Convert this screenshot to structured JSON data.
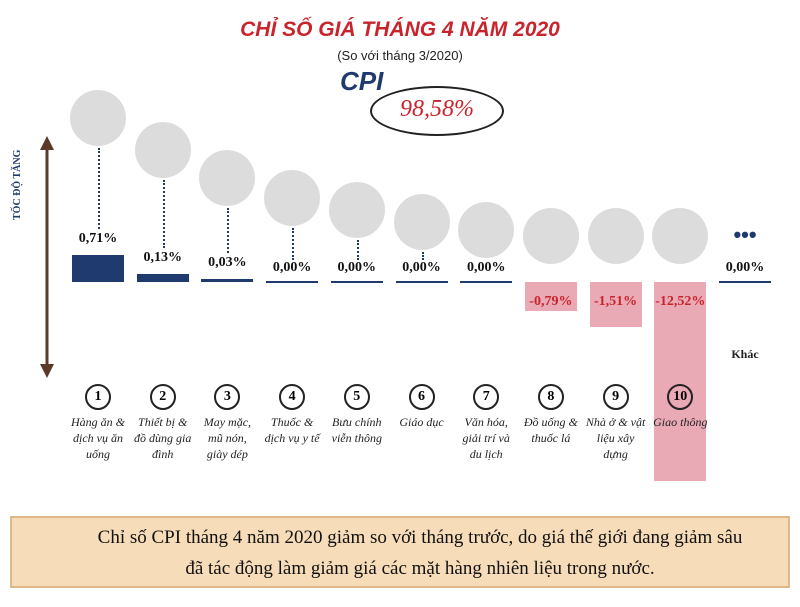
{
  "chart_data": {
    "type": "bar",
    "title": "CHỈ SỐ GIÁ THÁNG 4 NĂM 2020",
    "subtitle": "(So với tháng 3/2020)",
    "cpi_label": "CPI",
    "cpi_value": 98.58,
    "cpi_value_label": "98,58%",
    "axis_label": "TỐC ĐỘ TĂNG",
    "categories": [
      "Hàng ăn & dịch vụ ăn uống",
      "Thiết bị & đồ dùng gia đình",
      "May mặc, mũ nón, giày dép",
      "Thuốc & dịch vụ y tế",
      "Bưu chính viễn thông",
      "Giáo dục",
      "Văn hóa, giải trí và du lịch",
      "Đồ uống & thuốc lá",
      "Nhà ở & vật liệu xây dựng",
      "Giao thông",
      "Khác"
    ],
    "numbers": [
      1,
      2,
      3,
      4,
      5,
      6,
      7,
      8,
      9,
      10,
      null
    ],
    "values": [
      0.71,
      0.13,
      0.03,
      0,
      0,
      0,
      0,
      -0.79,
      -1.51,
      -12.52,
      0
    ],
    "value_labels": [
      "0,71%",
      "0,13%",
      "0,03%",
      "0,00%",
      "0,00%",
      "0,00%",
      "0,00%",
      "-0,79%",
      "-1,51%",
      "-12,52%",
      "0,00%"
    ],
    "positive_color": "#1f3a6e",
    "negative_color": "#e9a9b5"
  },
  "note": "Chỉ số CPI tháng 4 năm 2020 giảm so với tháng trước, do giá thế giới đang giảm sâu đã tác động làm giảm giá các mặt hàng nhiên liệu trong nước."
}
